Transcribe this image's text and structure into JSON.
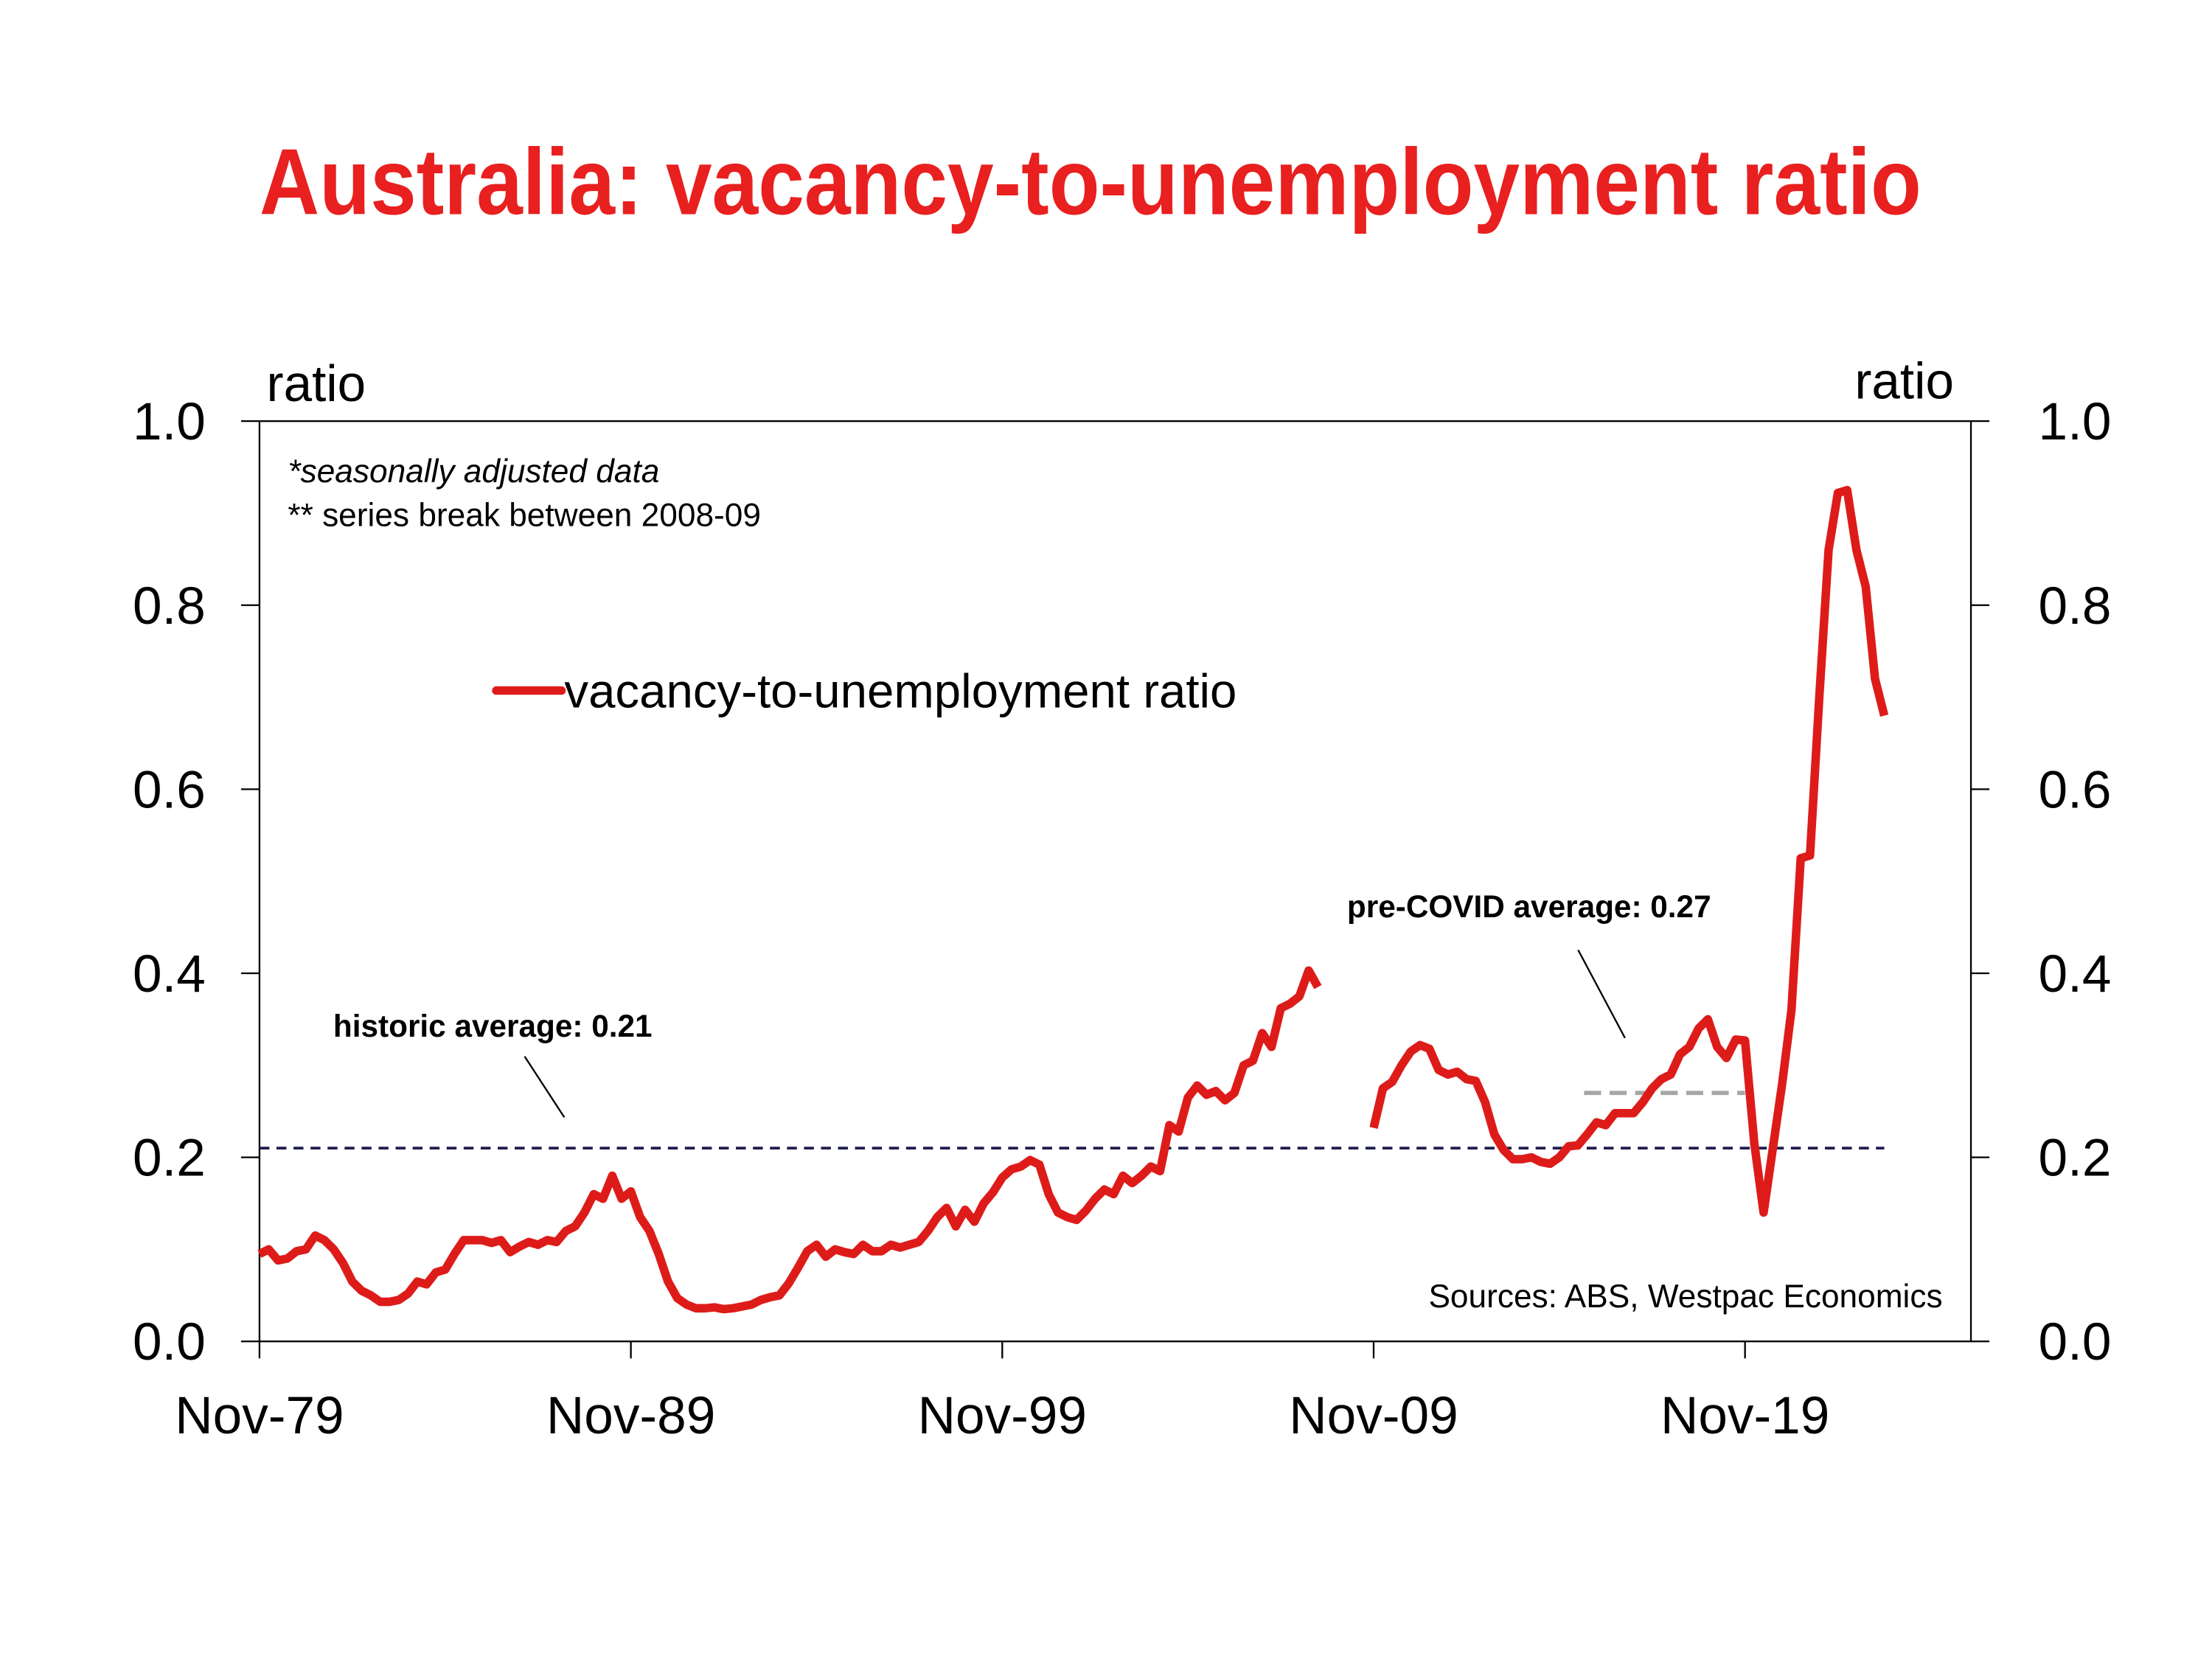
{
  "chart_data": {
    "type": "line",
    "title": "Australia: vacancy-to-unemployment ratio",
    "y_label": "ratio",
    "y2_label": "ratio",
    "notes": [
      "*seasonally adjusted data",
      "** series break between 2008-09"
    ],
    "source": "Sources: ABS, Westpac Economics",
    "xlim": [
      "1979-11",
      "2025-12"
    ],
    "xticks": [
      {
        "value": "1979-11",
        "label": "Nov-79"
      },
      {
        "value": "1989-11",
        "label": "Nov-89"
      },
      {
        "value": "1999-11",
        "label": "Nov-99"
      },
      {
        "value": "2009-11",
        "label": "Nov-09"
      },
      {
        "value": "2019-11",
        "label": "Nov-19"
      }
    ],
    "ylim": [
      0,
      1
    ],
    "yticks": [
      {
        "value": 0,
        "label": "0.0"
      },
      0.2,
      0.4,
      0.6,
      0.8,
      {
        "value": 1,
        "label": "1.0"
      }
    ],
    "y2lim": [
      0,
      1
    ],
    "y2ticks": [
      {
        "value": 0,
        "label": "0.0"
      },
      0.2,
      0.4,
      0.6,
      0.8,
      {
        "value": 1,
        "label": "1.0"
      }
    ],
    "grid": false,
    "legend": "top-left",
    "reference_lines": [
      {
        "label": "historic average: 0.21",
        "value": 0.21,
        "color": "#1f1f4f",
        "x": [
          "1979-11",
          "2023-08"
        ]
      },
      {
        "label": "pre-COVID average: 0.27",
        "value": 0.27,
        "color": "#a6a6a6",
        "x": [
          "2015-07",
          "2019-11"
        ]
      }
    ],
    "x": [
      "1979-11",
      "1980-02",
      "1980-05",
      "1980-08",
      "1980-11",
      "1981-02",
      "1981-05",
      "1981-08",
      "1981-11",
      "1982-02",
      "1982-05",
      "1982-08",
      "1982-11",
      "1983-02",
      "1983-05",
      "1983-08",
      "1983-11",
      "1984-02",
      "1984-05",
      "1984-08",
      "1984-11",
      "1985-02",
      "1985-05",
      "1985-08",
      "1985-11",
      "1986-02",
      "1986-05",
      "1986-08",
      "1986-11",
      "1987-02",
      "1987-05",
      "1987-08",
      "1987-11",
      "1988-02",
      "1988-05",
      "1988-08",
      "1988-11",
      "1989-02",
      "1989-05",
      "1989-08",
      "1989-11",
      "1990-02",
      "1990-05",
      "1990-08",
      "1990-11",
      "1991-02",
      "1991-05",
      "1991-08",
      "1991-11",
      "1992-02",
      "1992-05",
      "1992-08",
      "1992-11",
      "1993-02",
      "1993-05",
      "1993-08",
      "1993-11",
      "1994-02",
      "1994-05",
      "1994-08",
      "1994-11",
      "1995-02",
      "1995-05",
      "1995-08",
      "1995-11",
      "1996-02",
      "1996-05",
      "1996-08",
      "1996-11",
      "1997-02",
      "1997-05",
      "1997-08",
      "1997-11",
      "1998-02",
      "1998-05",
      "1998-08",
      "1998-11",
      "1999-02",
      "1999-05",
      "1999-08",
      "1999-11",
      "2000-02",
      "2000-05",
      "2000-08",
      "2000-11",
      "2001-02",
      "2001-05",
      "2001-08",
      "2001-11",
      "2002-02",
      "2002-05",
      "2002-08",
      "2002-11",
      "2003-02",
      "2003-05",
      "2003-08",
      "2003-11",
      "2004-02",
      "2004-05",
      "2004-08",
      "2004-11",
      "2005-02",
      "2005-05",
      "2005-08",
      "2005-11",
      "2006-02",
      "2006-05",
      "2006-08",
      "2006-11",
      "2007-02",
      "2007-05",
      "2007-08",
      "2007-11",
      "2008-02",
      "2008-05",
      "2009-02",
      "2009-11",
      "2010-02",
      "2010-05",
      "2010-08",
      "2010-11",
      "2011-02",
      "2011-05",
      "2011-08",
      "2011-11",
      "2012-02",
      "2012-05",
      "2012-08",
      "2012-11",
      "2013-02",
      "2013-05",
      "2013-08",
      "2013-11",
      "2014-02",
      "2014-05",
      "2014-08",
      "2014-11",
      "2015-02",
      "2015-05",
      "2015-08",
      "2015-11",
      "2016-02",
      "2016-05",
      "2016-08",
      "2016-11",
      "2017-02",
      "2017-05",
      "2017-08",
      "2017-11",
      "2018-02",
      "2018-05",
      "2018-08",
      "2018-11",
      "2019-02",
      "2019-05",
      "2019-08",
      "2019-11",
      "2020-02",
      "2020-05",
      "2020-08",
      "2020-11",
      "2021-02",
      "2021-05",
      "2021-08",
      "2021-11",
      "2022-02",
      "2022-05",
      "2022-08",
      "2022-11",
      "2023-02",
      "2023-05",
      "2023-08"
    ],
    "series": [
      {
        "name": "vacancy-to-unemployment ratio",
        "color": "#dd1c1a",
        "values": [
          0.095,
          0.1,
          0.088,
          0.09,
          0.098,
          0.1,
          0.115,
          0.11,
          0.1,
          0.085,
          0.065,
          0.055,
          0.05,
          0.043,
          0.043,
          0.045,
          0.052,
          0.065,
          0.062,
          0.075,
          0.078,
          0.095,
          0.11,
          0.11,
          0.11,
          0.107,
          0.11,
          0.097,
          0.103,
          0.108,
          0.105,
          0.11,
          0.108,
          0.12,
          0.125,
          0.14,
          0.16,
          0.155,
          0.18,
          0.155,
          0.163,
          0.135,
          0.12,
          0.095,
          0.065,
          0.047,
          0.04,
          0.036,
          0.036,
          0.037,
          0.035,
          0.036,
          0.038,
          0.04,
          0.045,
          0.048,
          0.05,
          0.063,
          0.08,
          0.098,
          0.105,
          0.092,
          0.1,
          0.097,
          0.095,
          0.105,
          0.098,
          0.098,
          0.105,
          0.102,
          0.105,
          0.108,
          0.12,
          0.135,
          0.145,
          0.125,
          0.143,
          0.13,
          0.15,
          0.162,
          0.178,
          0.187,
          0.19,
          0.197,
          0.192,
          0.16,
          0.14,
          0.135,
          0.132,
          0.142,
          0.155,
          0.165,
          0.16,
          0.18,
          0.172,
          0.18,
          0.19,
          0.185,
          0.235,
          0.228,
          0.265,
          0.278,
          0.268,
          0.272,
          0.262,
          0.27,
          0.3,
          0.305,
          0.335,
          0.32,
          0.362,
          0.367,
          0.375,
          0.403,
          0.385,
          null,
          0.232,
          0.275,
          0.282,
          0.3,
          0.315,
          0.322,
          0.318,
          0.295,
          0.29,
          0.293,
          0.285,
          0.283,
          0.26,
          0.225,
          0.208,
          0.198,
          0.198,
          0.2,
          0.195,
          0.193,
          0.2,
          0.212,
          0.213,
          0.225,
          0.238,
          0.235,
          0.248,
          0.248,
          0.248,
          0.26,
          0.275,
          0.285,
          0.29,
          0.312,
          0.32,
          0.34,
          0.35,
          0.32,
          0.308,
          0.328,
          0.327,
          0.215,
          0.14,
          0.21,
          0.28,
          0.36,
          0.525,
          0.528,
          0.7,
          0.86,
          0.922,
          0.925,
          0.86,
          0.82,
          0.72,
          0.68
        ]
      }
    ]
  }
}
